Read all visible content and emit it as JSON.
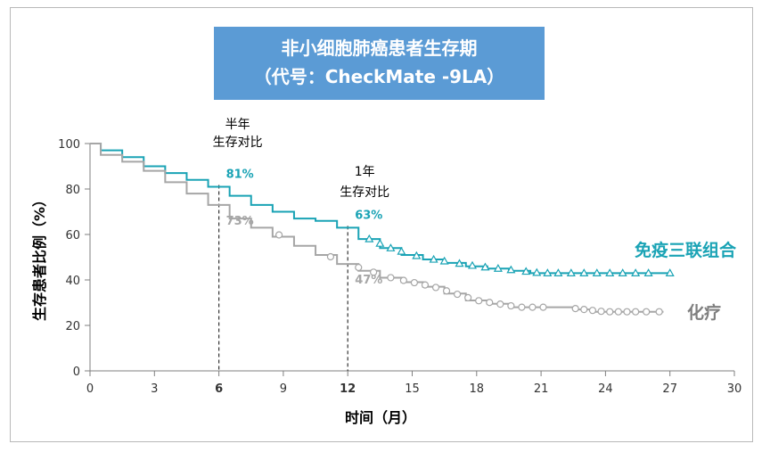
{
  "chart_data": {
    "type": "line",
    "title_line1": "非小细胞肺癌患者生存期",
    "title_line2": "（代号：CheckMate -9LA）",
    "xlabel": "时间（月）",
    "ylabel": "生存患者比例（%）",
    "xlim": [
      0,
      30
    ],
    "ylim": [
      0,
      100
    ],
    "x_ticks": [
      0,
      3,
      6,
      9,
      12,
      15,
      18,
      21,
      24,
      27,
      30
    ],
    "y_ticks": [
      0,
      20,
      40,
      60,
      80,
      100
    ],
    "colors": {
      "immuno": "#1aa3b5",
      "chemo": "#a6a6a6",
      "annotation": "#000000"
    },
    "series": [
      {
        "name": "免疫三联组合",
        "color": "#1aa3b5",
        "marker": "triangle",
        "x": [
          0,
          1,
          2,
          3,
          4,
          5,
          6,
          7,
          8,
          9,
          10,
          11,
          12,
          13,
          14,
          15,
          16,
          17,
          18,
          19,
          20,
          21,
          22,
          24,
          26,
          27
        ],
        "y": [
          100,
          97,
          94,
          90,
          87,
          84,
          81,
          77,
          73,
          70,
          67,
          66,
          63,
          58,
          54,
          51,
          49,
          47.5,
          46,
          45,
          44,
          43,
          43,
          43,
          43,
          43
        ]
      },
      {
        "name": "化疗",
        "color": "#a6a6a6",
        "marker": "circle",
        "x": [
          0,
          1,
          2,
          3,
          4,
          5,
          6,
          7,
          8,
          9,
          10,
          11,
          12,
          13,
          14,
          15,
          16,
          17,
          18,
          19,
          20,
          21,
          22,
          23,
          24,
          25,
          26,
          26.7
        ],
        "y": [
          100,
          95,
          92,
          88,
          83,
          78,
          73,
          67,
          63,
          59,
          55,
          51,
          47,
          44,
          41,
          39,
          37,
          34,
          31,
          29.5,
          28,
          28,
          28,
          27,
          26,
          26,
          26,
          26
        ]
      }
    ],
    "markers": {
      "immuno": [
        13.0,
        13.5,
        14.0,
        14.5,
        15.2,
        16.0,
        16.5,
        17.2,
        17.8,
        18.4,
        19.0,
        19.6,
        20.3,
        20.8,
        21.3,
        21.8,
        22.4,
        23.0,
        23.6,
        24.2,
        24.8,
        25.4,
        26.0,
        27.0
      ],
      "chemo": [
        8.8,
        11.2,
        12.5,
        13.2,
        14.0,
        14.6,
        15.1,
        15.6,
        16.1,
        16.6,
        17.1,
        17.6,
        18.1,
        18.6,
        19.1,
        19.6,
        20.1,
        20.6,
        21.1,
        22.6,
        23.0,
        23.4,
        23.8,
        24.2,
        24.6,
        25.0,
        25.4,
        25.9,
        26.5
      ]
    },
    "annotations": [
      {
        "x": 6,
        "header": "半年",
        "subheader": "生存对比",
        "immuno_label": "81%",
        "chemo_label": "73%",
        "immuno_y": 81,
        "chemo_y": 73
      },
      {
        "x": 12,
        "header": "1年",
        "subheader": "生存对比",
        "immuno_label": "63%",
        "chemo_label": "47%",
        "immuno_y": 63,
        "chemo_y": 47
      }
    ]
  }
}
